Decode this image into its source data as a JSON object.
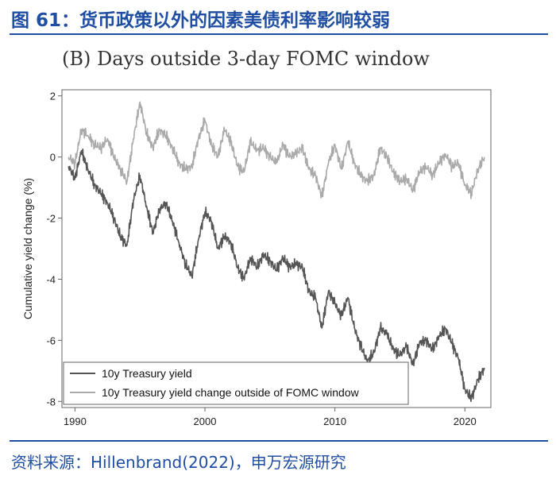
{
  "header": {
    "figure_title": "图 61：货币政策以外的因素美债利率影响较弱"
  },
  "footer": {
    "source": "资料来源：Hillenbrand(2022)，申万宏源研究"
  },
  "chart_data": {
    "type": "line",
    "title": "(B) Days outside 3-day FOMC window",
    "xlabel": "",
    "ylabel": "Cumulative yield change (%)",
    "xlim": [
      1989,
      2022
    ],
    "ylim": [
      -8.2,
      2.2
    ],
    "xticks": [
      1990,
      2000,
      2010,
      2020
    ],
    "yticks": [
      2,
      0,
      -2,
      -4,
      -6,
      -8
    ],
    "grid": false,
    "legend_position": "bottom-left",
    "colors": {
      "treasury": "#555555",
      "outside": "#aaaaaa"
    },
    "series": [
      {
        "name": "10y Treasury yield",
        "x": [
          1989.5,
          1990.0,
          1990.5,
          1991.0,
          1991.5,
          1992.0,
          1992.5,
          1993.0,
          1993.5,
          1994.0,
          1994.5,
          1995.0,
          1995.5,
          1996.0,
          1996.5,
          1997.0,
          1997.5,
          1998.0,
          1998.5,
          1999.0,
          1999.5,
          2000.0,
          2000.5,
          2001.0,
          2001.5,
          2002.0,
          2002.5,
          2003.0,
          2003.5,
          2004.0,
          2004.5,
          2005.0,
          2005.5,
          2006.0,
          2006.5,
          2007.0,
          2007.5,
          2008.0,
          2008.5,
          2009.0,
          2009.5,
          2010.0,
          2010.5,
          2011.0,
          2011.5,
          2012.0,
          2012.5,
          2013.0,
          2013.5,
          2014.0,
          2014.5,
          2015.0,
          2015.5,
          2016.0,
          2016.5,
          2017.0,
          2017.5,
          2018.0,
          2018.5,
          2019.0,
          2019.5,
          2020.0,
          2020.5,
          2021.0,
          2021.5
        ],
        "values": [
          -0.3,
          -0.7,
          0.2,
          -0.4,
          -0.9,
          -1.2,
          -1.5,
          -2.0,
          -2.6,
          -2.9,
          -1.4,
          -0.6,
          -1.6,
          -2.5,
          -1.7,
          -1.5,
          -2.1,
          -2.8,
          -3.5,
          -3.9,
          -2.7,
          -1.8,
          -2.1,
          -3.0,
          -2.6,
          -2.8,
          -3.6,
          -4.0,
          -3.3,
          -3.6,
          -3.2,
          -3.4,
          -3.7,
          -3.3,
          -3.6,
          -3.5,
          -3.6,
          -4.4,
          -4.6,
          -5.6,
          -4.4,
          -4.8,
          -5.2,
          -4.6,
          -5.6,
          -6.2,
          -6.7,
          -6.4,
          -5.6,
          -5.8,
          -6.3,
          -6.5,
          -6.2,
          -6.8,
          -6.1,
          -6.0,
          -6.3,
          -5.9,
          -5.6,
          -6.1,
          -6.6,
          -7.6,
          -7.9,
          -7.3,
          -6.9
        ]
      },
      {
        "name": "10y Treasury yield change outside of FOMC window",
        "x": [
          1989.5,
          1990.0,
          1990.5,
          1991.0,
          1991.5,
          1992.0,
          1992.5,
          1993.0,
          1993.5,
          1994.0,
          1994.5,
          1995.0,
          1995.5,
          1996.0,
          1996.5,
          1997.0,
          1997.5,
          1998.0,
          1998.5,
          1999.0,
          1999.5,
          2000.0,
          2000.5,
          2001.0,
          2001.5,
          2002.0,
          2002.5,
          2003.0,
          2003.5,
          2004.0,
          2004.5,
          2005.0,
          2005.5,
          2006.0,
          2006.5,
          2007.0,
          2007.5,
          2008.0,
          2008.5,
          2009.0,
          2009.5,
          2010.0,
          2010.5,
          2011.0,
          2011.5,
          2012.0,
          2012.5,
          2013.0,
          2013.5,
          2014.0,
          2014.5,
          2015.0,
          2015.5,
          2016.0,
          2016.5,
          2017.0,
          2017.5,
          2018.0,
          2018.5,
          2019.0,
          2019.5,
          2020.0,
          2020.5,
          2021.0,
          2021.5
        ],
        "values": [
          0.0,
          -0.2,
          0.9,
          0.7,
          0.4,
          0.3,
          0.6,
          0.0,
          -0.4,
          -0.8,
          0.6,
          1.8,
          0.8,
          0.3,
          0.9,
          0.7,
          0.3,
          -0.2,
          -0.4,
          -0.3,
          0.6,
          1.2,
          0.4,
          0.0,
          0.9,
          0.5,
          -0.3,
          -0.5,
          0.5,
          0.2,
          0.3,
          0.0,
          -0.2,
          0.4,
          0.0,
          0.1,
          0.3,
          -0.4,
          -0.6,
          -1.3,
          -0.2,
          0.4,
          -0.4,
          0.5,
          -0.2,
          -0.6,
          -0.8,
          -0.6,
          0.3,
          0.0,
          -0.5,
          -0.8,
          -0.7,
          -1.1,
          -0.5,
          -0.3,
          -0.6,
          -0.2,
          0.1,
          -0.3,
          -0.2,
          -0.9,
          -1.2,
          -0.4,
          0.0
        ]
      }
    ]
  }
}
